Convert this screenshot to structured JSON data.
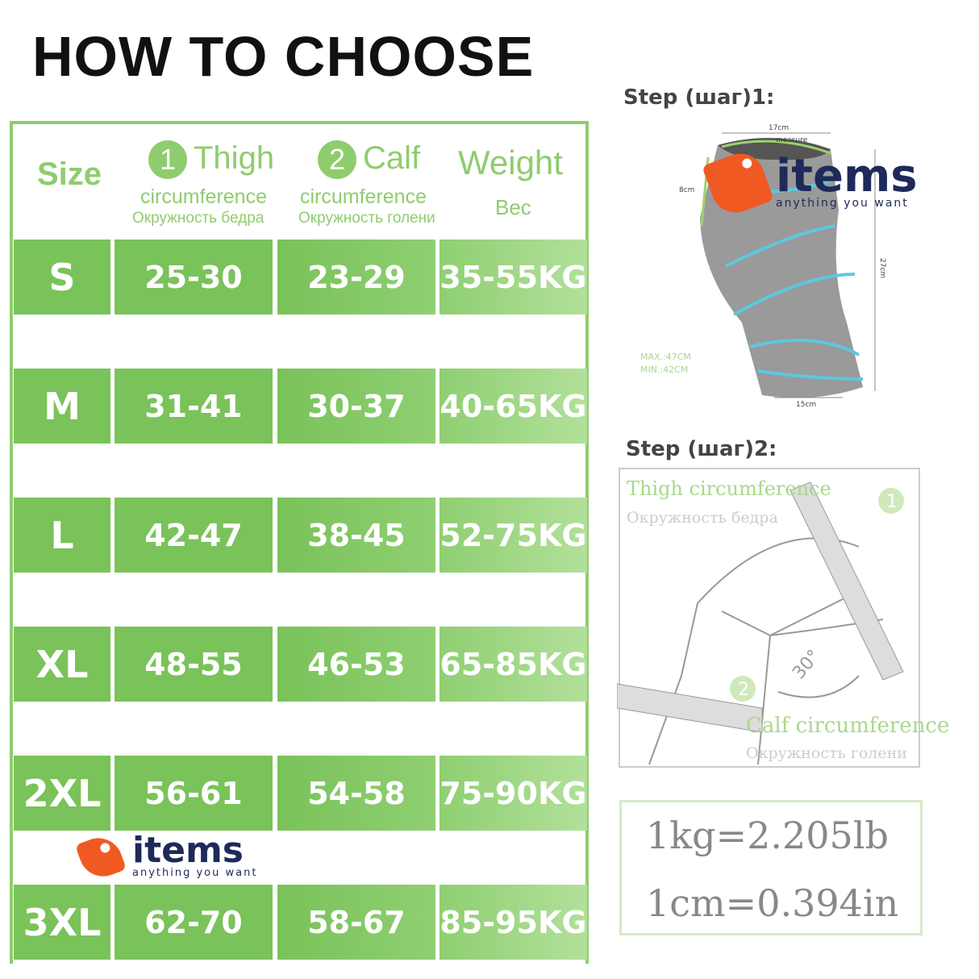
{
  "title": "HOW TO CHOOSE",
  "table": {
    "header": {
      "size": "Size",
      "thigh": {
        "num": "1",
        "label": "Thigh",
        "sub": "circumference",
        "ru": "Окружность бедра"
      },
      "calf": {
        "num": "2",
        "label": "Calf",
        "sub": "circumference",
        "ru": "Окружность голени"
      },
      "weight": {
        "label": "Weight",
        "ru": "Вес"
      }
    },
    "rows": [
      {
        "size": "S",
        "thigh": "25-30",
        "calf": "23-29",
        "weight": "35-55KG"
      },
      {
        "size": "M",
        "thigh": "31-41",
        "calf": "30-37",
        "weight": "40-65KG"
      },
      {
        "size": "L",
        "thigh": "42-47",
        "calf": "38-45",
        "weight": "52-75KG"
      },
      {
        "size": "XL",
        "thigh": "48-55",
        "calf": "46-53",
        "weight": "65-85KG"
      },
      {
        "size": "2XL",
        "thigh": "56-61",
        "calf": "54-58",
        "weight": "75-90KG"
      },
      {
        "size": "3XL",
        "thigh": "62-70",
        "calf": "58-67",
        "weight": "85-95KG"
      }
    ]
  },
  "step1": {
    "label": "Step (шаг)1:",
    "dims": {
      "top": "17cm",
      "measure": "measure",
      "side": "8cm",
      "height": "27cm",
      "bottom": "15cm",
      "max": "MAX.:47CM",
      "min": "MIN.:42CM"
    }
  },
  "step2": {
    "label": "Step (шаг)2:",
    "thigh": "Thigh circumference",
    "thigh_ru": "Окружность бедра",
    "calf": "Calf circumference",
    "calf_ru": "Окружность голени",
    "n1": "1",
    "n2": "2",
    "angle": "30°"
  },
  "conversion": {
    "kg": "1kg=2.205lb",
    "cm": "1cm=0.394in"
  },
  "watermark": {
    "brand": "items",
    "tagline": "anything you want"
  },
  "colors": {
    "green": "#7ac25a",
    "header_green": "#8fcc6e",
    "brand_orange": "#f05a22",
    "brand_navy": "#1d2a5a",
    "brace_blue": "#5cc8e0"
  }
}
